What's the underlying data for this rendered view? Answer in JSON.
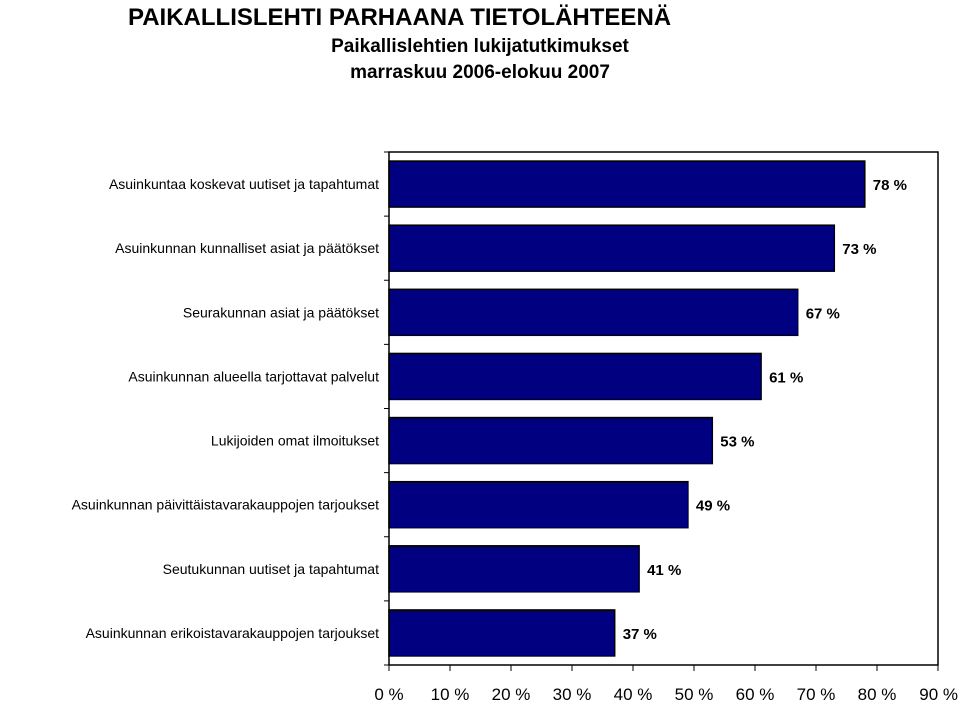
{
  "header": {
    "title": "PAIKALLISLEHTI PARHAANA TIETOLÄHTEENÄ",
    "subtitle_line1": "Paikallislehtien lukijatutkimukset",
    "subtitle_line2": "marraskuu 2006-elokuu 2007"
  },
  "chart_data": {
    "type": "bar",
    "orientation": "horizontal",
    "categories": [
      "Asuinkuntaa koskevat uutiset ja tapahtumat",
      "Asuinkunnan kunnalliset asiat ja päätökset",
      "Seurakunnan asiat ja päätökset",
      "Asuinkunnan alueella tarjottavat palvelut",
      "Lukijoiden omat ilmoitukset",
      "Asuinkunnan päivittäistavarakauppojen tarjoukset",
      "Seutukunnan uutiset ja tapahtumat",
      "Asuinkunnan erikoistavarakauppojen tarjoukset"
    ],
    "values": [
      78,
      73,
      67,
      61,
      53,
      49,
      41,
      37
    ],
    "value_labels": [
      "78 %",
      "73 %",
      "67 %",
      "61 %",
      "53 %",
      "49 %",
      "41 %",
      "37 %"
    ],
    "xlim": [
      0,
      90
    ],
    "x_ticks": [
      "0 %",
      "10 %",
      "20 %",
      "30 %",
      "40 %",
      "50 %",
      "60 %",
      "70 %",
      "80 %",
      "90 %"
    ],
    "bar_color": "#000080",
    "grid": false,
    "legend": "none"
  }
}
